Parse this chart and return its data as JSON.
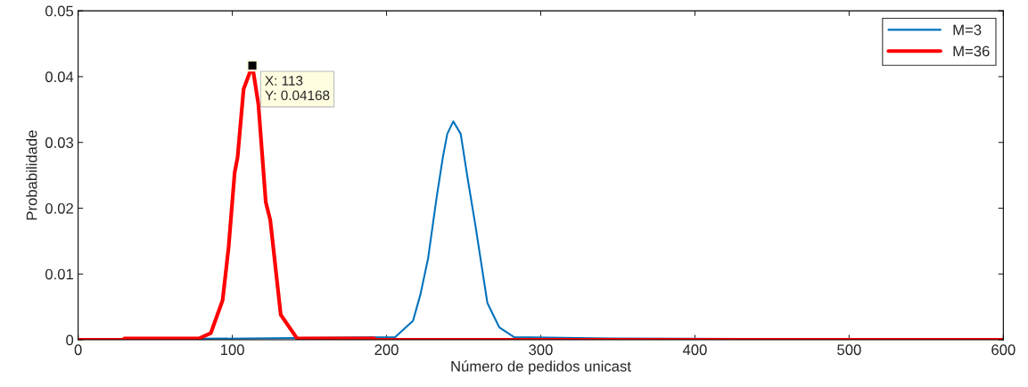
{
  "chart_data": {
    "type": "line",
    "xlabel": "Número de pedidos unicast",
    "ylabel": "Probabilidade",
    "xlim": [
      0,
      600
    ],
    "ylim": [
      0,
      0.05
    ],
    "xticks": [
      0,
      100,
      200,
      300,
      400,
      500,
      600
    ],
    "yticks": [
      0,
      0.01,
      0.02,
      0.03,
      0.04,
      0.05
    ],
    "grid": false,
    "legend": "top right",
    "marker": "none",
    "line_style": "solid",
    "annotations": [
      {
        "text": "X: 113\nY: 0.04168",
        "x": 113,
        "y": 0.04168
      }
    ],
    "series": [
      {
        "name": "M=3",
        "color": "#0072bd",
        "x": [
          0,
          205.6,
          217.2,
          222,
          226.9,
          232.6,
          236.5,
          239.4,
          243.3,
          248.1,
          252.9,
          257.7,
          265.4,
          273.1,
          282.8,
          345,
          600
        ],
        "values": [
          0,
          0.0004,
          0.0029,
          0.0069,
          0.0123,
          0.0218,
          0.0277,
          0.0313,
          0.0332,
          0.0313,
          0.0241,
          0.0173,
          0.0056,
          0.0019,
          0.0004,
          0.0002,
          0
        ]
      },
      {
        "name": "M=36",
        "color": "#ff0000",
        "x": [
          0,
          29,
          30,
          78.3,
          86,
          93.7,
          97.6,
          101.5,
          103.4,
          107.3,
          113,
          116.9,
          121.7,
          124.6,
          131.4,
          142,
          192,
          193,
          600
        ],
        "values": [
          0,
          0,
          0.0002,
          0.0002,
          0.001,
          0.006,
          0.0141,
          0.0254,
          0.0277,
          0.0381,
          0.04168,
          0.0358,
          0.0209,
          0.0182,
          0.0038,
          0.0002,
          0.0002,
          0,
          0
        ]
      }
    ]
  }
}
